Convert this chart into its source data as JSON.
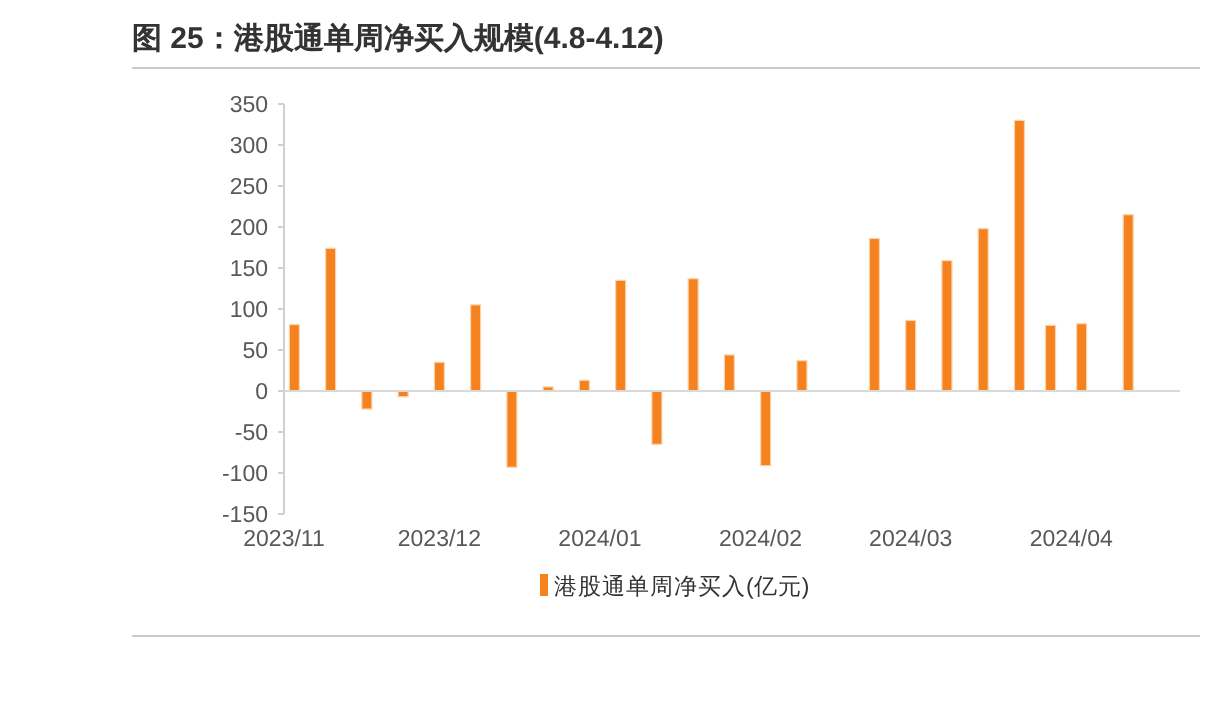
{
  "chart_data": {
    "type": "bar",
    "title": "图 25：港股通单周净买入规模(4.8-4.12)",
    "x": [
      "2023-11-03",
      "2023-11-10",
      "2023-11-17",
      "2023-11-24",
      "2023-12-01",
      "2023-12-08",
      "2023-12-15",
      "2023-12-22",
      "2023-12-29",
      "2024-01-05",
      "2024-01-12",
      "2024-01-19",
      "2024-01-26",
      "2024-02-02",
      "2024-02-09",
      "2024-02-23",
      "2024-03-01",
      "2024-03-08",
      "2024-03-15",
      "2024-03-22",
      "2024-03-28",
      "2024-04-03",
      "2024-04-12"
    ],
    "series": [
      {
        "name": "港股通单周净买入(亿元)",
        "color": "#f5821f",
        "values": [
          81,
          174,
          -22,
          -7,
          35,
          105,
          -93,
          5,
          13,
          135,
          -65,
          137,
          44,
          -91,
          37,
          186,
          86,
          159,
          198,
          330,
          80,
          82,
          215
        ]
      }
    ],
    "xlim": [
      "2023-11-01",
      "2024-04-22"
    ],
    "xticks": [
      {
        "value": "2023-11-01",
        "label": "2023/11"
      },
      {
        "value": "2023-12-01",
        "label": "2023/12"
      },
      {
        "value": "2024-01-01",
        "label": "2024/01"
      },
      {
        "value": "2024-02-01",
        "label": "2024/02"
      },
      {
        "value": "2024-03-01",
        "label": "2024/03"
      },
      {
        "value": "2024-04-01",
        "label": "2024/04"
      }
    ],
    "ylim": [
      -150,
      350
    ],
    "yticks": [
      -150,
      -100,
      -50,
      0,
      50,
      100,
      150,
      200,
      250,
      300,
      350
    ],
    "legend": "bottom"
  }
}
